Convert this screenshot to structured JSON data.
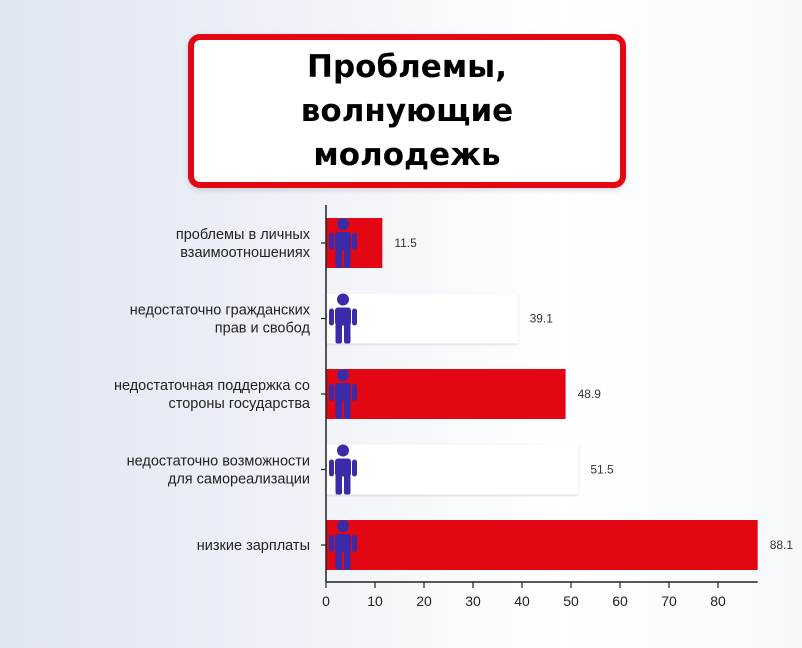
{
  "title": "Проблемы, волнующие молодежь",
  "colors": {
    "accent": "#e30613",
    "alt_bar": "#ffffff",
    "icon": "#3a2ca8"
  },
  "icon": "person-icon",
  "chart_data": {
    "type": "bar",
    "orientation": "horizontal",
    "categories": [
      [
        "проблемы в личных",
        "взаимоотношениях"
      ],
      [
        "недостаточно гражданских",
        "прав и свобод"
      ],
      [
        "недостаточная поддержка со",
        "стороны государства"
      ],
      [
        "недостаточно возможности",
        "для самореализации"
      ],
      [
        "низкие зарплаты"
      ]
    ],
    "values": [
      11.5,
      39.1,
      48.9,
      51.5,
      88.1
    ],
    "value_labels": [
      "11.5",
      "39.1",
      "48.9",
      "51.5",
      "88.1"
    ],
    "bar_colors": [
      "#e30613",
      "#ffffff",
      "#e30613",
      "#ffffff",
      "#e30613"
    ],
    "xlim": [
      0,
      88.1
    ],
    "xticks": [
      0,
      10,
      20,
      30,
      40,
      50,
      60,
      70,
      80
    ],
    "grid": false
  }
}
